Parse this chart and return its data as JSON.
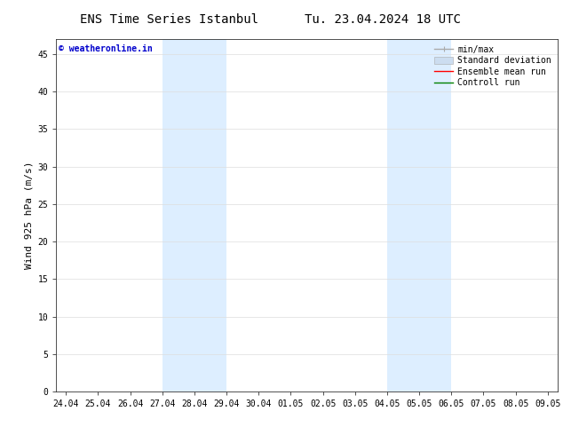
{
  "title_left": "ENS Time Series Istanbul",
  "title_right": "Tu. 23.04.2024 18 UTC",
  "ylabel": "Wind 925 hPa (m/s)",
  "watermark": "© weatheronline.in",
  "background_color": "#ffffff",
  "plot_bg_color": "#ffffff",
  "ylim": [
    0,
    47
  ],
  "yticks": [
    0,
    5,
    10,
    15,
    20,
    25,
    30,
    35,
    40,
    45
  ],
  "xtick_labels": [
    "24.04",
    "25.04",
    "26.04",
    "27.04",
    "28.04",
    "29.04",
    "30.04",
    "01.05",
    "02.05",
    "03.05",
    "04.05",
    "05.05",
    "06.05",
    "07.05",
    "08.05",
    "09.05"
  ],
  "xtick_positions": [
    0,
    1,
    2,
    3,
    4,
    5,
    6,
    7,
    8,
    9,
    10,
    11,
    12,
    13,
    14,
    15
  ],
  "shaded_regions": [
    {
      "xstart": 3,
      "xend": 5,
      "color": "#ddeeff"
    },
    {
      "xstart": 10,
      "xend": 12,
      "color": "#ddeeff"
    }
  ],
  "legend_entries": [
    {
      "label": "min/max",
      "color": "#aaaaaa",
      "lw": 1.0
    },
    {
      "label": "Standard deviation",
      "color": "#ccddf0",
      "lw": 5
    },
    {
      "label": "Ensemble mean run",
      "color": "#ff0000",
      "lw": 1.0
    },
    {
      "label": "Controll run",
      "color": "#008000",
      "lw": 1.0
    }
  ],
  "watermark_color": "#0000cc",
  "title_fontsize": 10,
  "tick_fontsize": 7,
  "ylabel_fontsize": 8,
  "legend_fontsize": 7,
  "watermark_fontsize": 7
}
